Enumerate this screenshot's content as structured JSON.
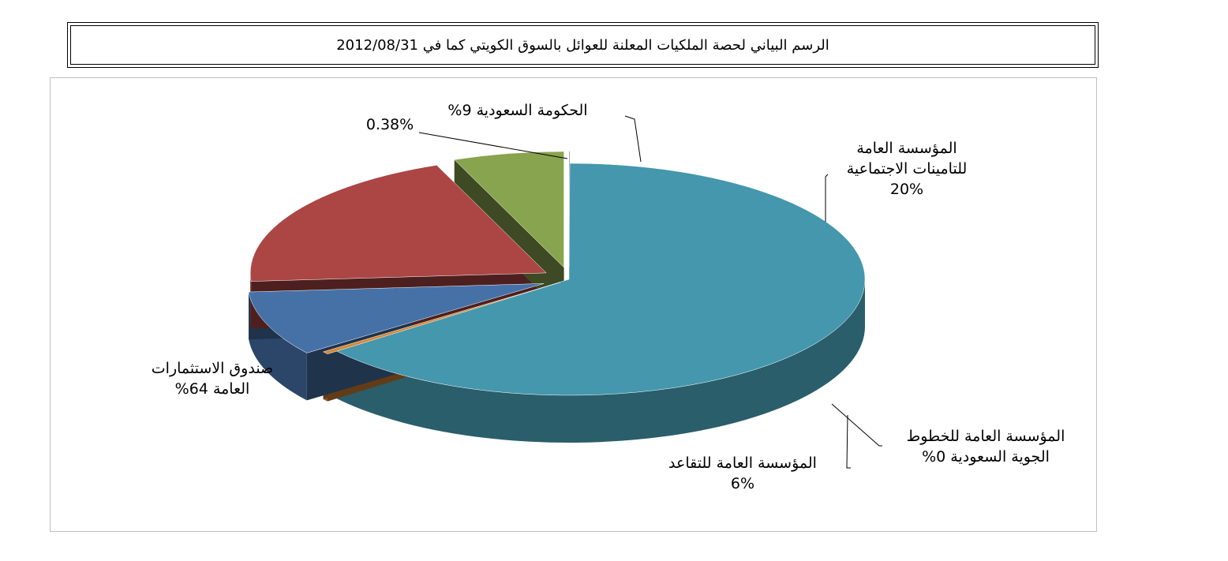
{
  "title": "الرسم البياني لحصة الملكيات المعلنة للعوائل بالسوق الكويتي كما في 2012/08/31",
  "colors": {
    "pif": "#4497ad",
    "gov": "#4571a7",
    "gosi": "#ab4644",
    "pension": "#88a44e",
    "airlines": "#6f5a93",
    "other": "#d98634"
  },
  "chart_data": {
    "type": "pie",
    "three_d": true,
    "exploded": true,
    "legend": "none",
    "slices": [
      {
        "key": "pif",
        "value": 64,
        "label_lines": [
          "صندوق الاستثمارات",
          "العامة 64%"
        ]
      },
      {
        "key": "other",
        "value": 0.38,
        "label_lines": [
          "0.38%"
        ]
      },
      {
        "key": "gov",
        "value": 9,
        "label_lines": [
          "الحكومة السعودية 9%"
        ]
      },
      {
        "key": "gosi",
        "value": 20,
        "label_lines": [
          "المؤسسة العامة",
          "للتامينات الاجتماعية",
          "20%"
        ]
      },
      {
        "key": "pension",
        "value": 6,
        "label_lines": [
          "المؤسسة العامة للتقاعد",
          "6%"
        ]
      },
      {
        "key": "airlines",
        "value": 0,
        "label_lines": [
          "المؤسسة العامة للخطوط",
          "الجوية السعودية 0%"
        ]
      }
    ]
  }
}
